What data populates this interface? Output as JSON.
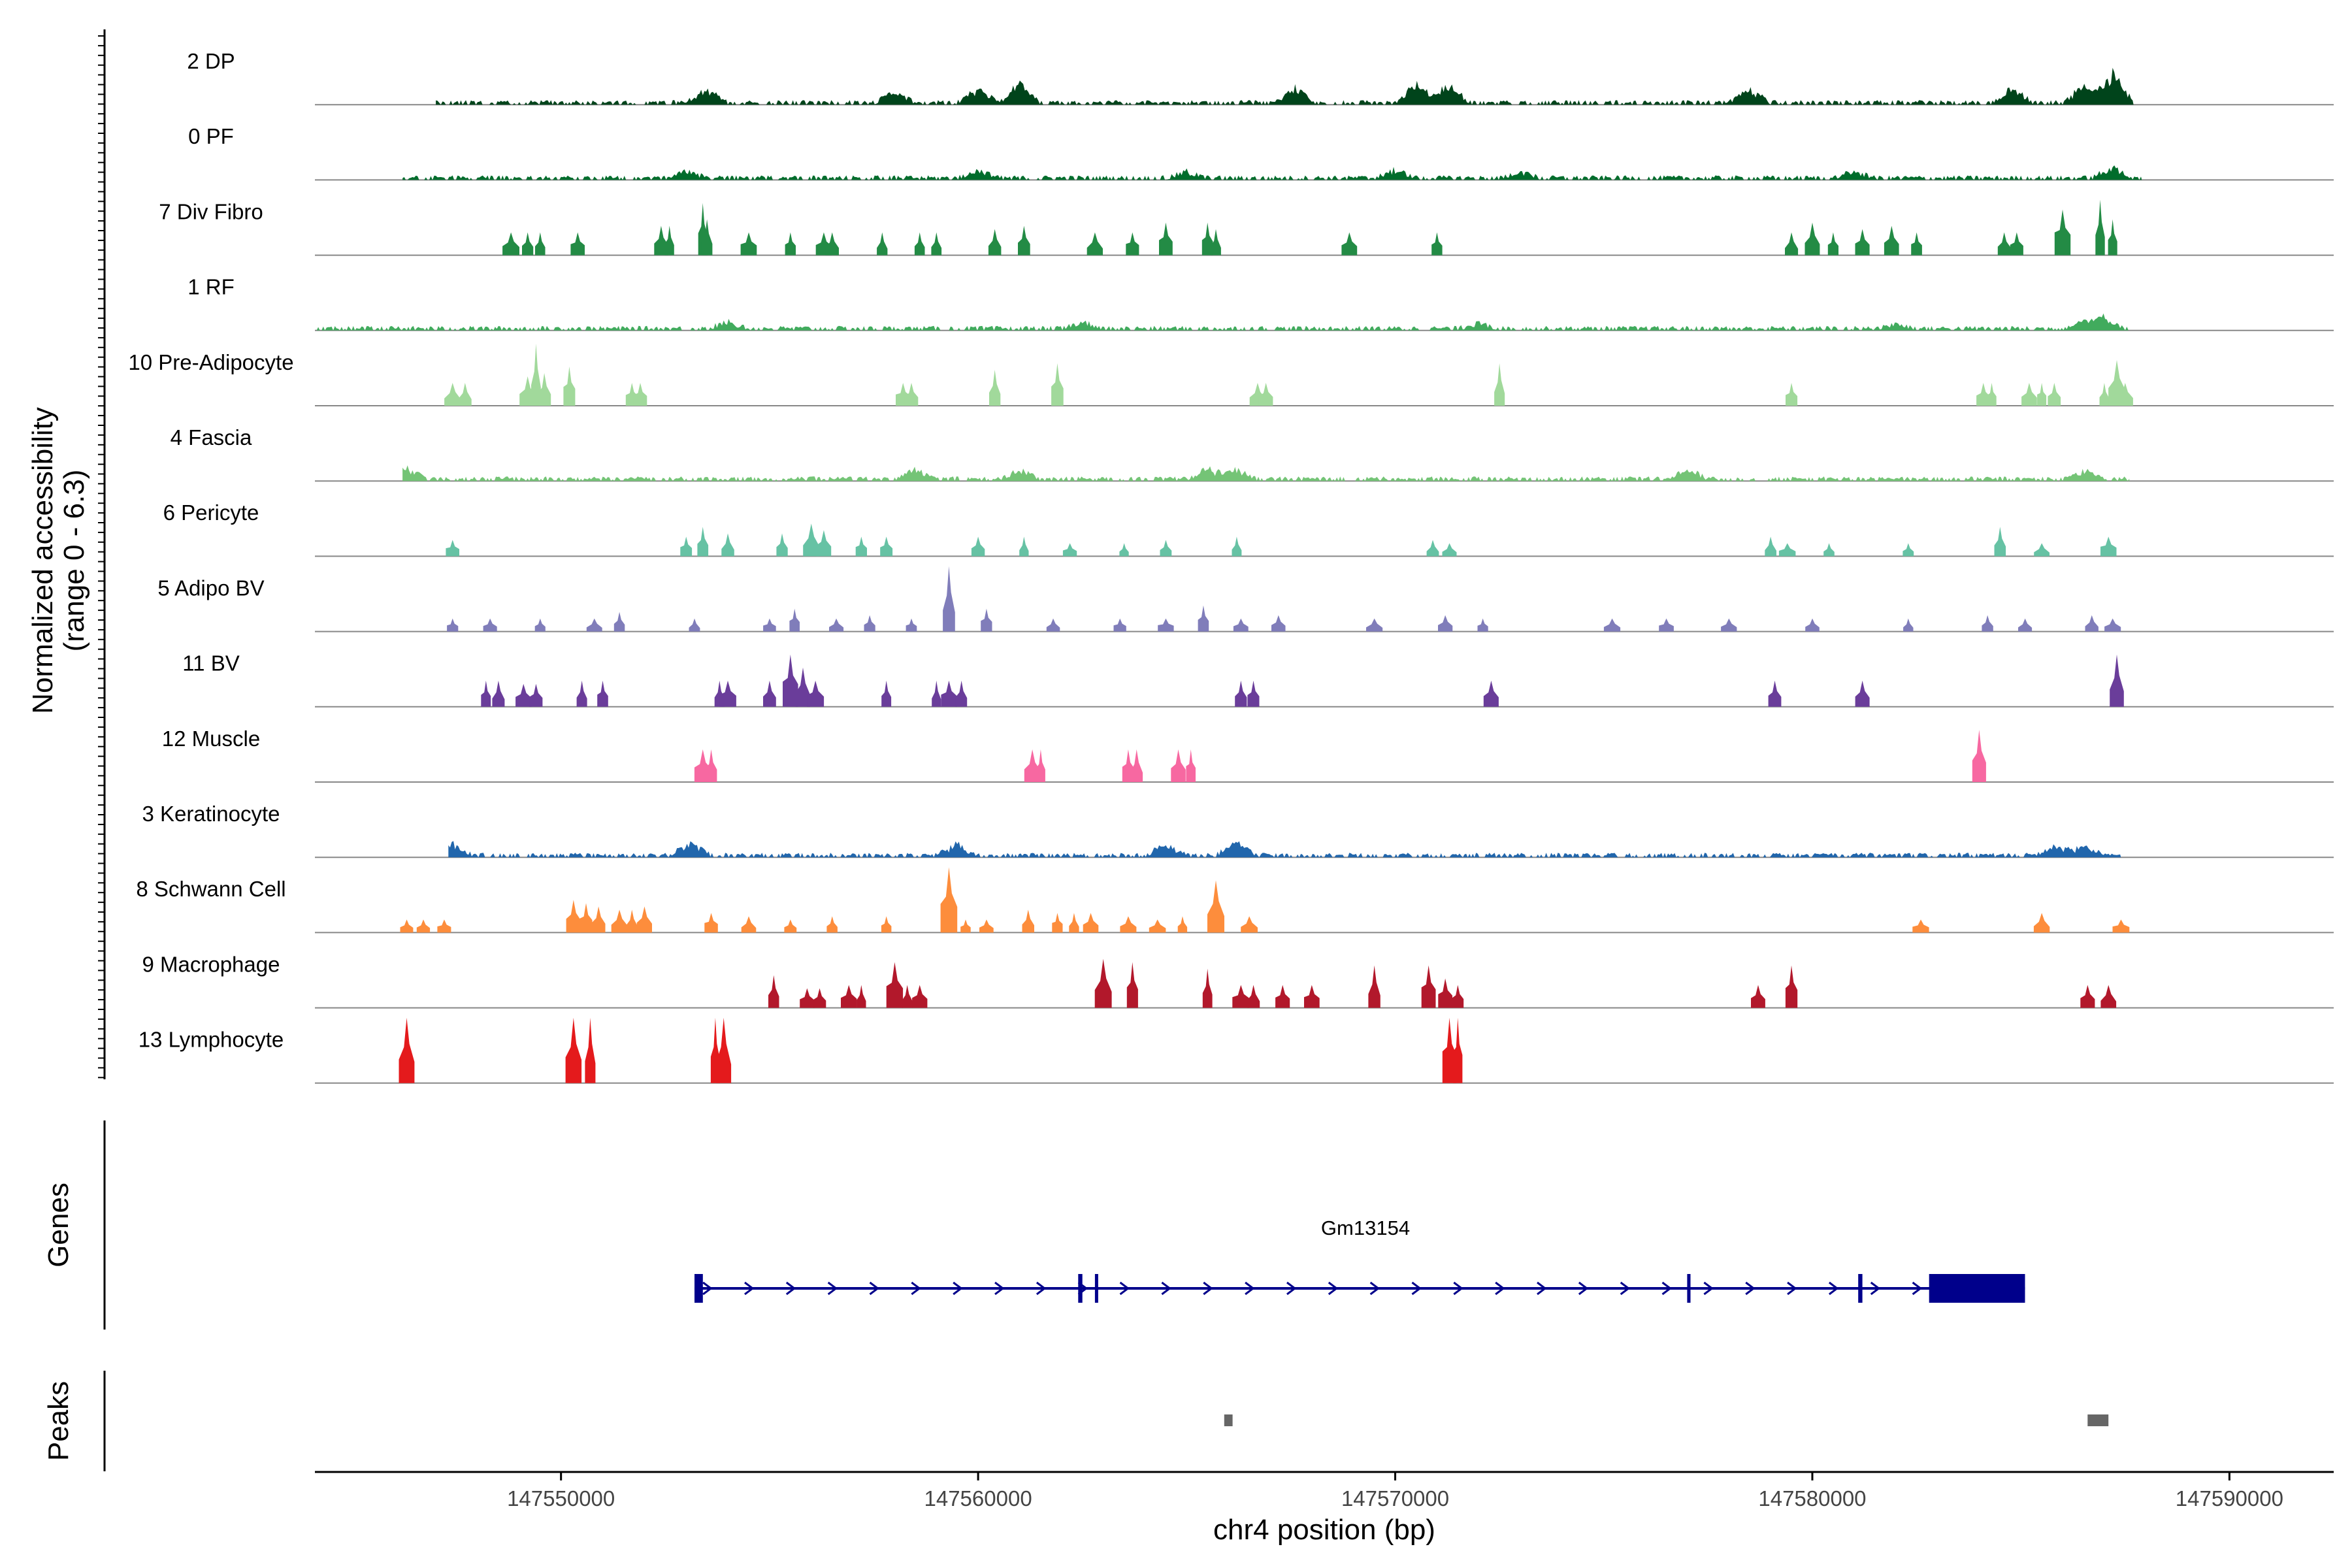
{
  "chart_data": {
    "type": "area",
    "title": "",
    "ylabel_line1": "Normalized accessibility",
    "ylabel_line2": "(range 0 - 6.3)",
    "y_range": [
      0,
      6.3
    ],
    "xlabel": "chr4 position (bp)",
    "xlim": [
      147544100,
      147592500
    ],
    "xticks": [
      147550000,
      147560000,
      147570000,
      147580000,
      147590000
    ],
    "xtick_labels": [
      "147550000",
      "147560000",
      "147570000",
      "147580000",
      "147590000"
    ],
    "tracks": [
      {
        "name": "2 DP",
        "color": "#00441b",
        "style": "dense",
        "start": 147547000,
        "end": 147587700,
        "seed": 11,
        "peaks": [
          [
            147553500,
            0.25
          ],
          [
            147558000,
            0.2
          ],
          [
            147560000,
            0.25
          ],
          [
            147561000,
            0.35
          ],
          [
            147567600,
            0.3
          ],
          [
            147570500,
            0.4
          ],
          [
            147571300,
            0.35
          ],
          [
            147578500,
            0.25
          ],
          [
            147584800,
            0.3
          ],
          [
            147586500,
            0.3
          ],
          [
            147587200,
            0.55
          ]
        ]
      },
      {
        "name": "0 PF",
        "color": "#006d2c",
        "style": "dense",
        "start": 147546200,
        "end": 147587900,
        "seed": 23,
        "peaks": [
          [
            147553000,
            0.15
          ],
          [
            147560000,
            0.15
          ],
          [
            147565000,
            0.12
          ],
          [
            147570000,
            0.15
          ],
          [
            147573000,
            0.12
          ],
          [
            147581000,
            0.12
          ],
          [
            147587200,
            0.2
          ]
        ]
      },
      {
        "name": "7 Div Fibro",
        "color": "#238b45",
        "style": "peaks",
        "start": 147548700,
        "end": 147587400,
        "seed": 31,
        "peaks": [
          [
            147548800,
            0.35
          ],
          [
            147549200,
            0.35
          ],
          [
            147549500,
            0.35
          ],
          [
            147550400,
            0.35
          ],
          [
            147552400,
            0.45
          ],
          [
            147552600,
            0.45
          ],
          [
            147553400,
            0.8
          ],
          [
            147553500,
            0.55
          ],
          [
            147554500,
            0.35
          ],
          [
            147555500,
            0.35
          ],
          [
            147556300,
            0.35
          ],
          [
            147556500,
            0.35
          ],
          [
            147557700,
            0.35
          ],
          [
            147558600,
            0.35
          ],
          [
            147559000,
            0.35
          ],
          [
            147560400,
            0.4
          ],
          [
            147561100,
            0.45
          ],
          [
            147562800,
            0.35
          ],
          [
            147563700,
            0.35
          ],
          [
            147564500,
            0.5
          ],
          [
            147565500,
            0.5
          ],
          [
            147565700,
            0.4
          ],
          [
            147568900,
            0.35
          ],
          [
            147571000,
            0.35
          ],
          [
            147579500,
            0.35
          ],
          [
            147580000,
            0.5
          ],
          [
            147580500,
            0.35
          ],
          [
            147581200,
            0.4
          ],
          [
            147581900,
            0.45
          ],
          [
            147582500,
            0.35
          ],
          [
            147584600,
            0.35
          ],
          [
            147584900,
            0.35
          ],
          [
            147586000,
            0.7
          ],
          [
            147586900,
            0.85
          ],
          [
            147587200,
            0.55
          ]
        ]
      },
      {
        "name": "1 RF",
        "color": "#41ab5d",
        "style": "dense",
        "start": 147544100,
        "end": 147587600,
        "seed": 47,
        "peaks": [
          [
            147554000,
            0.12
          ],
          [
            147562500,
            0.12
          ],
          [
            147572000,
            0.1
          ],
          [
            147582000,
            0.1
          ],
          [
            147586500,
            0.15
          ],
          [
            147587000,
            0.2
          ]
        ]
      },
      {
        "name": "10 Pre-Adipocyte",
        "color": "#a1d99b",
        "style": "peaks",
        "start": 147547300,
        "end": 147587600,
        "seed": 53,
        "peaks": [
          [
            147547400,
            0.35
          ],
          [
            147547700,
            0.35
          ],
          [
            147549200,
            0.45
          ],
          [
            147549400,
            0.95
          ],
          [
            147549600,
            0.5
          ],
          [
            147550200,
            0.6
          ],
          [
            147551700,
            0.35
          ],
          [
            147551900,
            0.35
          ],
          [
            147558200,
            0.35
          ],
          [
            147558400,
            0.35
          ],
          [
            147560400,
            0.55
          ],
          [
            147561900,
            0.65
          ],
          [
            147566700,
            0.35
          ],
          [
            147566900,
            0.35
          ],
          [
            147572500,
            0.65
          ],
          [
            147579500,
            0.35
          ],
          [
            147584100,
            0.35
          ],
          [
            147584300,
            0.35
          ],
          [
            147585200,
            0.35
          ],
          [
            147585500,
            0.35
          ],
          [
            147585800,
            0.35
          ],
          [
            147587000,
            0.35
          ],
          [
            147587300,
            0.7
          ],
          [
            147587500,
            0.35
          ]
        ]
      },
      {
        "name": "4 Fascia",
        "color": "#74c476",
        "style": "dense",
        "start": 147546200,
        "end": 147587600,
        "seed": 59,
        "peaks": [
          [
            147546300,
            0.2
          ],
          [
            147558500,
            0.2
          ],
          [
            147561000,
            0.18
          ],
          [
            147565500,
            0.2
          ],
          [
            147566200,
            0.18
          ],
          [
            147577000,
            0.18
          ],
          [
            147586500,
            0.15
          ]
        ]
      },
      {
        "name": "6 Pericyte",
        "color": "#66c2a4",
        "style": "peaks",
        "start": 147547200,
        "end": 147587400,
        "seed": 61,
        "peaks": [
          [
            147547400,
            0.25
          ],
          [
            147553000,
            0.3
          ],
          [
            147553400,
            0.45
          ],
          [
            147554000,
            0.35
          ],
          [
            147555300,
            0.35
          ],
          [
            147556000,
            0.5
          ],
          [
            147556300,
            0.4
          ],
          [
            147557200,
            0.3
          ],
          [
            147557800,
            0.3
          ],
          [
            147560000,
            0.3
          ],
          [
            147561100,
            0.3
          ],
          [
            147562200,
            0.2
          ],
          [
            147563500,
            0.2
          ],
          [
            147564500,
            0.25
          ],
          [
            147566200,
            0.3
          ],
          [
            147570900,
            0.25
          ],
          [
            147571300,
            0.2
          ],
          [
            147579000,
            0.3
          ],
          [
            147579400,
            0.2
          ],
          [
            147580400,
            0.2
          ],
          [
            147582300,
            0.2
          ],
          [
            147584500,
            0.45
          ],
          [
            147585500,
            0.2
          ],
          [
            147587100,
            0.3
          ]
        ]
      },
      {
        "name": "5 Adipo BV",
        "color": "#807dba",
        "style": "peaks",
        "start": 147547000,
        "end": 147587400,
        "seed": 67,
        "peaks": [
          [
            147547400,
            0.2
          ],
          [
            147548300,
            0.2
          ],
          [
            147549500,
            0.2
          ],
          [
            147550800,
            0.2
          ],
          [
            147551400,
            0.3
          ],
          [
            147553200,
            0.2
          ],
          [
            147555000,
            0.2
          ],
          [
            147555600,
            0.35
          ],
          [
            147556600,
            0.2
          ],
          [
            147557400,
            0.25
          ],
          [
            147558400,
            0.2
          ],
          [
            147559300,
            1.3
          ],
          [
            147560200,
            0.35
          ],
          [
            147561800,
            0.2
          ],
          [
            147563400,
            0.2
          ],
          [
            147564500,
            0.2
          ],
          [
            147565400,
            0.4
          ],
          [
            147566300,
            0.2
          ],
          [
            147567200,
            0.25
          ],
          [
            147569500,
            0.2
          ],
          [
            147571200,
            0.25
          ],
          [
            147572100,
            0.2
          ],
          [
            147575200,
            0.2
          ],
          [
            147576500,
            0.2
          ],
          [
            147578000,
            0.2
          ],
          [
            147580000,
            0.2
          ],
          [
            147582300,
            0.2
          ],
          [
            147584200,
            0.25
          ],
          [
            147585100,
            0.2
          ],
          [
            147586700,
            0.25
          ],
          [
            147587200,
            0.2
          ]
        ]
      },
      {
        "name": "11 BV",
        "color": "#6a3d9a",
        "style": "peaks",
        "start": 147548100,
        "end": 147587600,
        "seed": 71,
        "peaks": [
          [
            147548200,
            0.4
          ],
          [
            147548500,
            0.4
          ],
          [
            147549100,
            0.35
          ],
          [
            147549400,
            0.35
          ],
          [
            147550500,
            0.4
          ],
          [
            147551000,
            0.4
          ],
          [
            147553800,
            0.4
          ],
          [
            147554000,
            0.4
          ],
          [
            147555000,
            0.4
          ],
          [
            147555500,
            0.8
          ],
          [
            147555800,
            0.6
          ],
          [
            147556100,
            0.4
          ],
          [
            147557800,
            0.4
          ],
          [
            147559000,
            0.4
          ],
          [
            147559300,
            0.4
          ],
          [
            147559600,
            0.4
          ],
          [
            147566300,
            0.4
          ],
          [
            147566600,
            0.4
          ],
          [
            147572300,
            0.4
          ],
          [
            147579100,
            0.4
          ],
          [
            147581200,
            0.4
          ],
          [
            147587300,
            0.8
          ]
        ]
      },
      {
        "name": "12 Muscle",
        "color": "#f768a1",
        "style": "peaks",
        "start": 147553300,
        "end": 147584100,
        "seed": 73,
        "peaks": [
          [
            147553400,
            0.5
          ],
          [
            147553600,
            0.5
          ],
          [
            147561300,
            0.5
          ],
          [
            147561500,
            0.5
          ],
          [
            147563600,
            0.5
          ],
          [
            147563800,
            0.5
          ],
          [
            147564800,
            0.5
          ],
          [
            147565100,
            0.5
          ],
          [
            147584000,
            0.8
          ]
        ]
      },
      {
        "name": "3 Keratinocyte",
        "color": "#2166ac",
        "style": "dense",
        "start": 147547300,
        "end": 147587400,
        "seed": 79,
        "peaks": [
          [
            147547400,
            0.2
          ],
          [
            147553100,
            0.25
          ],
          [
            147559500,
            0.2
          ],
          [
            147564500,
            0.2
          ],
          [
            147566200,
            0.25
          ],
          [
            147585800,
            0.2
          ],
          [
            147586500,
            0.18
          ]
        ]
      },
      {
        "name": "8 Schwann Cell",
        "color": "#fd8d3c",
        "style": "peaks",
        "start": 147546200,
        "end": 147587600,
        "seed": 83,
        "peaks": [
          [
            147546300,
            0.2
          ],
          [
            147546700,
            0.2
          ],
          [
            147547200,
            0.2
          ],
          [
            147550300,
            0.5
          ],
          [
            147550600,
            0.45
          ],
          [
            147550900,
            0.4
          ],
          [
            147551400,
            0.35
          ],
          [
            147551700,
            0.35
          ],
          [
            147552000,
            0.4
          ],
          [
            147553600,
            0.3
          ],
          [
            147554500,
            0.25
          ],
          [
            147555500,
            0.2
          ],
          [
            147556500,
            0.25
          ],
          [
            147557800,
            0.25
          ],
          [
            147559300,
            1.2
          ],
          [
            147559700,
            0.2
          ],
          [
            147560200,
            0.2
          ],
          [
            147561200,
            0.35
          ],
          [
            147561900,
            0.3
          ],
          [
            147562300,
            0.3
          ],
          [
            147562700,
            0.3
          ],
          [
            147563600,
            0.25
          ],
          [
            147564300,
            0.2
          ],
          [
            147564900,
            0.25
          ],
          [
            147565700,
            0.8
          ],
          [
            147566500,
            0.25
          ],
          [
            147582600,
            0.2
          ],
          [
            147585500,
            0.3
          ],
          [
            147587400,
            0.2
          ]
        ]
      },
      {
        "name": "9 Macrophage",
        "color": "#b2182b",
        "style": "peaks",
        "start": 147555000,
        "end": 147587000,
        "seed": 89,
        "peaks": [
          [
            147555100,
            0.5
          ],
          [
            147555900,
            0.3
          ],
          [
            147556200,
            0.3
          ],
          [
            147556900,
            0.35
          ],
          [
            147557200,
            0.35
          ],
          [
            147558000,
            0.7
          ],
          [
            147558300,
            0.35
          ],
          [
            147558600,
            0.35
          ],
          [
            147563000,
            0.75
          ],
          [
            147563700,
            0.7
          ],
          [
            147565500,
            0.6
          ],
          [
            147566300,
            0.35
          ],
          [
            147566600,
            0.35
          ],
          [
            147567300,
            0.35
          ],
          [
            147568000,
            0.35
          ],
          [
            147569500,
            0.65
          ],
          [
            147570800,
            0.65
          ],
          [
            147571200,
            0.45
          ],
          [
            147571500,
            0.35
          ],
          [
            147578700,
            0.35
          ],
          [
            147579500,
            0.65
          ],
          [
            147586600,
            0.35
          ],
          [
            147587100,
            0.35
          ]
        ]
      },
      {
        "name": "13 Lymphocyte",
        "color": "#e41a1c",
        "style": "peaks",
        "start": 147546200,
        "end": 147571600,
        "seed": 97,
        "peaks": [
          [
            147546300,
            1.1
          ],
          [
            147550300,
            1.1
          ],
          [
            147550700,
            1.1
          ],
          [
            147553700,
            1.1
          ],
          [
            147553900,
            1.1
          ],
          [
            147571300,
            1.1
          ],
          [
            147571500,
            1.1
          ]
        ]
      }
    ],
    "genes_label": "Genes",
    "gene": {
      "name": "Gm13154",
      "color": "#00008b",
      "strand": "+",
      "start": 147553200,
      "end": 147585100,
      "exons": [
        [
          147553200,
          147553400
        ],
        [
          147562400,
          147562500
        ],
        [
          147562800,
          147562820
        ],
        [
          147577000,
          147577080
        ],
        [
          147581100,
          147581200
        ],
        [
          147582800,
          147585100
        ]
      ]
    },
    "peaks_label": "Peaks",
    "peak_regions": [
      [
        147565900,
        147566100
      ],
      [
        147586600,
        147587100
      ]
    ],
    "peak_region_color": "#666666"
  }
}
